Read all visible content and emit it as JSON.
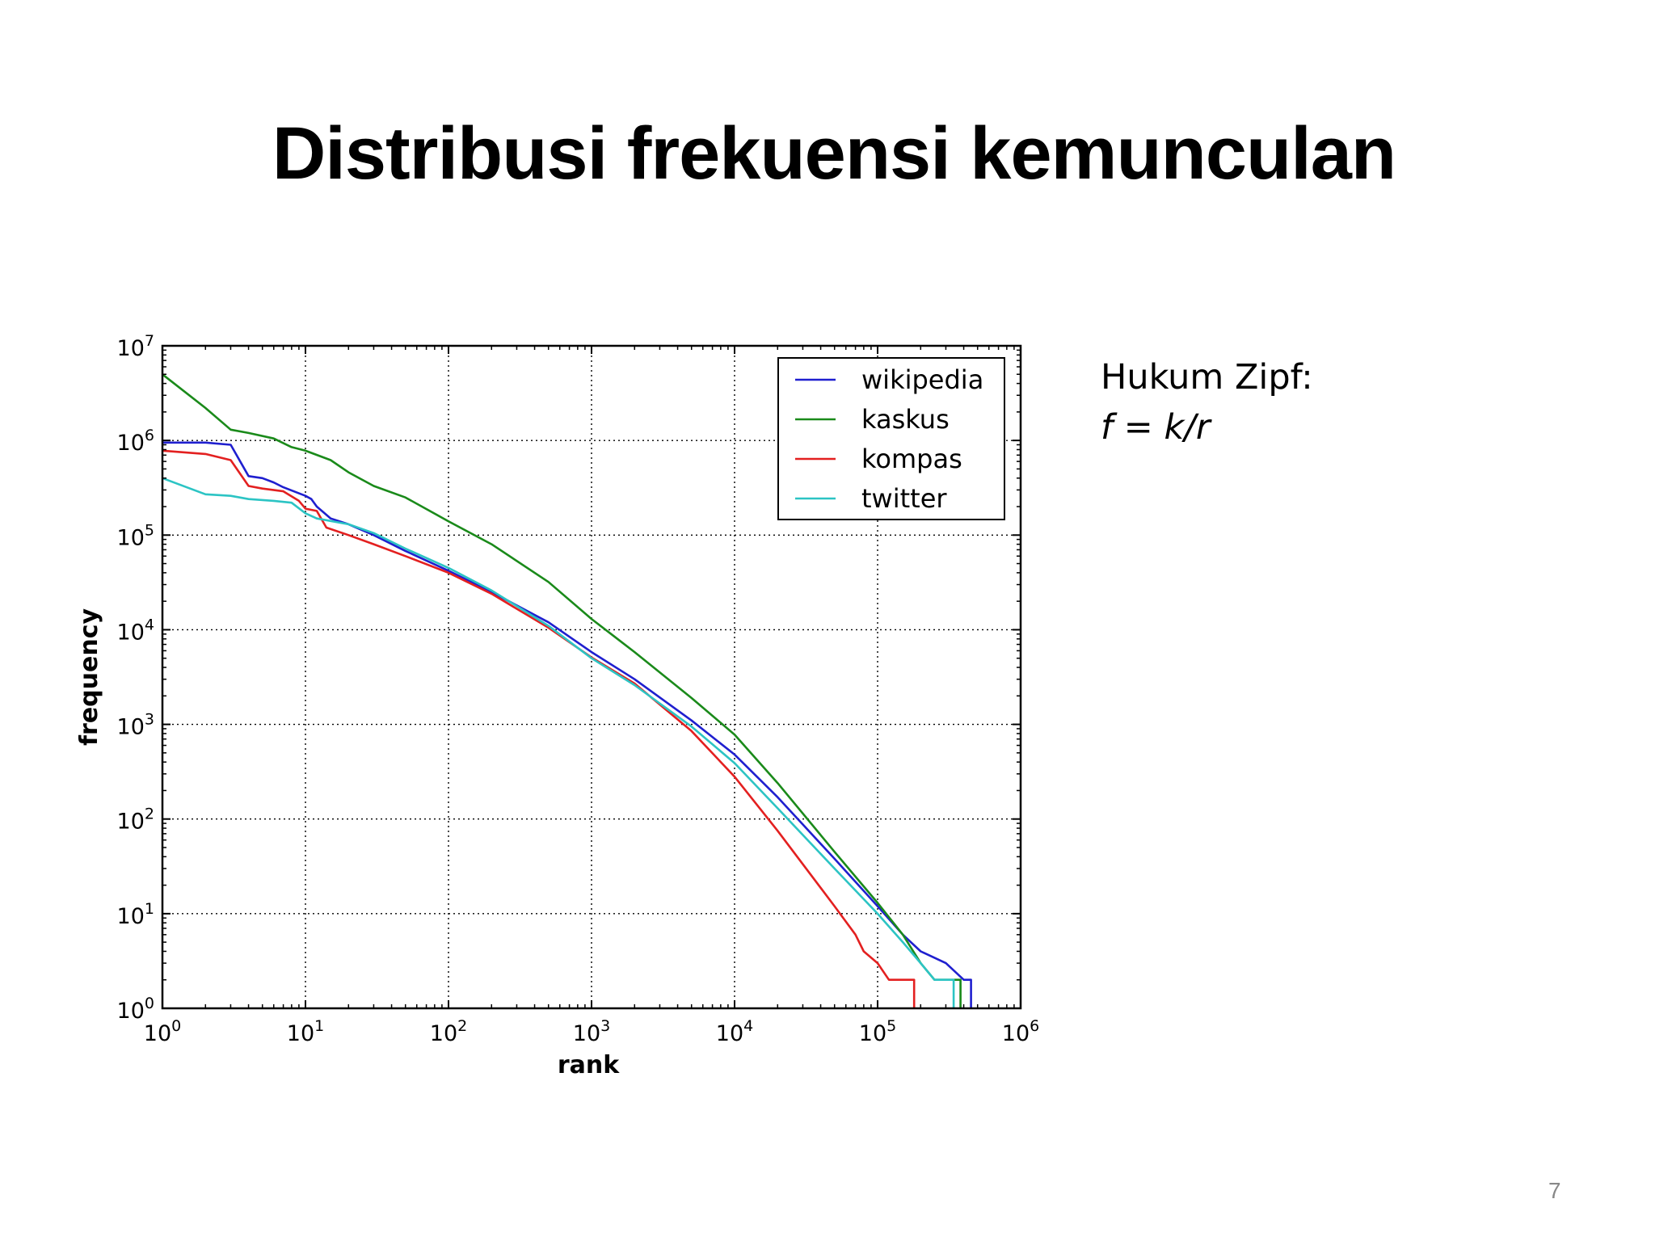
{
  "slide": {
    "title": "Distribusi frekuensi kemunculan",
    "law_label": "Hukum Zipf:",
    "law_formula": "f = k/r",
    "page_number": "7"
  },
  "chart_data": {
    "type": "line",
    "xlabel": "rank",
    "ylabel": "frequency",
    "xscale": "log",
    "yscale": "log",
    "xlim": [
      1,
      1000000
    ],
    "ylim": [
      1,
      10000000
    ],
    "x_ticks": [
      {
        "base": "10",
        "exp": "0"
      },
      {
        "base": "10",
        "exp": "1"
      },
      {
        "base": "10",
        "exp": "2"
      },
      {
        "base": "10",
        "exp": "3"
      },
      {
        "base": "10",
        "exp": "4"
      },
      {
        "base": "10",
        "exp": "5"
      },
      {
        "base": "10",
        "exp": "6"
      }
    ],
    "y_ticks": [
      {
        "base": "10",
        "exp": "0"
      },
      {
        "base": "10",
        "exp": "1"
      },
      {
        "base": "10",
        "exp": "2"
      },
      {
        "base": "10",
        "exp": "3"
      },
      {
        "base": "10",
        "exp": "4"
      },
      {
        "base": "10",
        "exp": "5"
      },
      {
        "base": "10",
        "exp": "6"
      },
      {
        "base": "10",
        "exp": "7"
      }
    ],
    "grid": true,
    "legend_position": "top-right",
    "series": [
      {
        "name": "wikipedia",
        "color": "#1f1fcf",
        "points": [
          [
            1,
            950000
          ],
          [
            2,
            950000
          ],
          [
            3,
            900000
          ],
          [
            4,
            420000
          ],
          [
            5,
            400000
          ],
          [
            6,
            360000
          ],
          [
            7,
            320000
          ],
          [
            10,
            260000
          ],
          [
            11,
            240000
          ],
          [
            12,
            200000
          ],
          [
            15,
            150000
          ],
          [
            20,
            130000
          ],
          [
            30,
            100000
          ],
          [
            50,
            68000
          ],
          [
            100,
            42000
          ],
          [
            200,
            25000
          ],
          [
            500,
            12000
          ],
          [
            1000,
            5800
          ],
          [
            2000,
            3000
          ],
          [
            5000,
            1100
          ],
          [
            10000,
            480
          ],
          [
            20000,
            170
          ],
          [
            50000,
            38
          ],
          [
            100000,
            12
          ],
          [
            150000,
            6
          ],
          [
            200000,
            4
          ],
          [
            300000,
            3
          ],
          [
            400000,
            2
          ],
          [
            450000,
            2
          ],
          [
            450000,
            1
          ]
        ]
      },
      {
        "name": "kaskus",
        "color": "#1a8a1a",
        "points": [
          [
            1,
            5000000
          ],
          [
            2,
            2200000
          ],
          [
            3,
            1300000
          ],
          [
            4,
            1200000
          ],
          [
            6,
            1050000
          ],
          [
            8,
            850000
          ],
          [
            10,
            780000
          ],
          [
            15,
            620000
          ],
          [
            20,
            460000
          ],
          [
            30,
            330000
          ],
          [
            50,
            250000
          ],
          [
            100,
            140000
          ],
          [
            200,
            80000
          ],
          [
            500,
            32000
          ],
          [
            1000,
            13000
          ],
          [
            2000,
            5800
          ],
          [
            5000,
            1900
          ],
          [
            10000,
            780
          ],
          [
            20000,
            240
          ],
          [
            50000,
            45
          ],
          [
            100000,
            13
          ],
          [
            150000,
            6
          ],
          [
            200000,
            3
          ],
          [
            250000,
            2
          ],
          [
            350000,
            2
          ],
          [
            380000,
            2
          ],
          [
            380000,
            1
          ]
        ]
      },
      {
        "name": "kompas",
        "color": "#e32020",
        "points": [
          [
            1,
            780000
          ],
          [
            2,
            720000
          ],
          [
            3,
            620000
          ],
          [
            4,
            330000
          ],
          [
            5,
            310000
          ],
          [
            7,
            290000
          ],
          [
            9,
            230000
          ],
          [
            10,
            190000
          ],
          [
            12,
            180000
          ],
          [
            14,
            120000
          ],
          [
            20,
            100000
          ],
          [
            30,
            80000
          ],
          [
            50,
            60000
          ],
          [
            100,
            40000
          ],
          [
            200,
            24000
          ],
          [
            500,
            10500
          ],
          [
            1000,
            5100
          ],
          [
            2000,
            2700
          ],
          [
            5000,
            850
          ],
          [
            10000,
            280
          ],
          [
            20000,
            75
          ],
          [
            50000,
            12
          ],
          [
            70000,
            6
          ],
          [
            80000,
            4
          ],
          [
            100000,
            3
          ],
          [
            120000,
            2
          ],
          [
            180000,
            2
          ],
          [
            180000,
            1
          ]
        ]
      },
      {
        "name": "twitter",
        "color": "#2cc4c4",
        "points": [
          [
            1,
            400000
          ],
          [
            2,
            270000
          ],
          [
            3,
            260000
          ],
          [
            4,
            240000
          ],
          [
            6,
            230000
          ],
          [
            8,
            220000
          ],
          [
            10,
            170000
          ],
          [
            12,
            150000
          ],
          [
            20,
            130000
          ],
          [
            30,
            105000
          ],
          [
            50,
            72000
          ],
          [
            100,
            45000
          ],
          [
            200,
            26000
          ],
          [
            500,
            11000
          ],
          [
            1000,
            5000
          ],
          [
            2000,
            2600
          ],
          [
            5000,
            950
          ],
          [
            10000,
            390
          ],
          [
            20000,
            130
          ],
          [
            50000,
            30
          ],
          [
            100000,
            10
          ],
          [
            150000,
            5
          ],
          [
            200000,
            3
          ],
          [
            250000,
            2
          ],
          [
            340000,
            2
          ],
          [
            340000,
            1
          ]
        ]
      }
    ]
  }
}
